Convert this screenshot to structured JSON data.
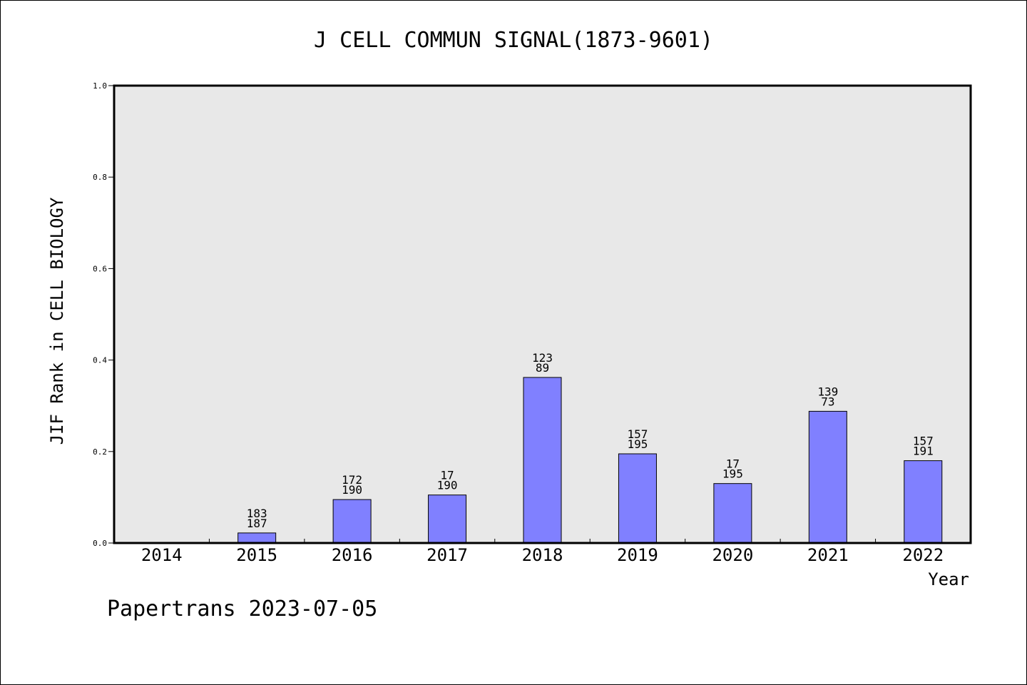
{
  "chart_data": {
    "type": "bar",
    "title": "J CELL COMMUN SIGNAL(1873-9601)",
    "xlabel": "Year",
    "ylabel": "JIF Rank in CELL BIOLOGY",
    "ylim": [
      0.0,
      1.0
    ],
    "yticks": [
      "0.0",
      "0.2",
      "0.4",
      "0.6",
      "0.8",
      "1.0"
    ],
    "categories": [
      "2014",
      "2015",
      "2016",
      "2017",
      "2018",
      "2019",
      "2020",
      "2021",
      "2022"
    ],
    "values": [
      null,
      0.022,
      0.095,
      0.105,
      0.362,
      0.195,
      0.13,
      0.288,
      0.18
    ],
    "labels": [
      null,
      [
        "183",
        "187"
      ],
      [
        "172",
        "190"
      ],
      [
        "17",
        "190"
      ],
      [
        "123",
        "89"
      ],
      [
        "157",
        "195"
      ],
      [
        "17",
        "195"
      ],
      [
        "139",
        "73"
      ],
      [
        "157",
        "191"
      ]
    ],
    "grid": false,
    "colors": {
      "bar": "#8080ff",
      "plot_bg": "#e8e8e8"
    }
  },
  "footer": "Papertrans 2023-07-05"
}
